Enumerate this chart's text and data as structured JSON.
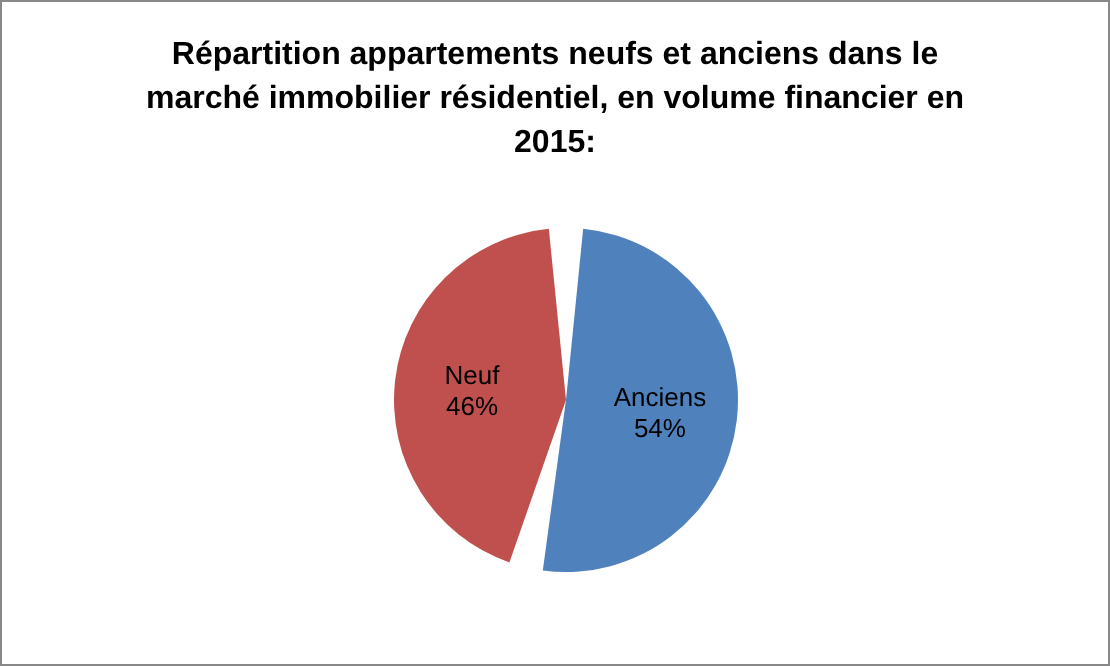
{
  "chart_data": {
    "type": "pie",
    "title": "Répartition appartements neufs et anciens dans le marché immobilier résidentiel, en volume financier en 2015:",
    "categories": [
      "Anciens",
      "Neuf"
    ],
    "values": [
      54,
      46
    ],
    "colors": [
      "#4f81bd",
      "#c0504d"
    ],
    "value_labels": [
      "54%",
      "46%"
    ],
    "legend": false
  }
}
